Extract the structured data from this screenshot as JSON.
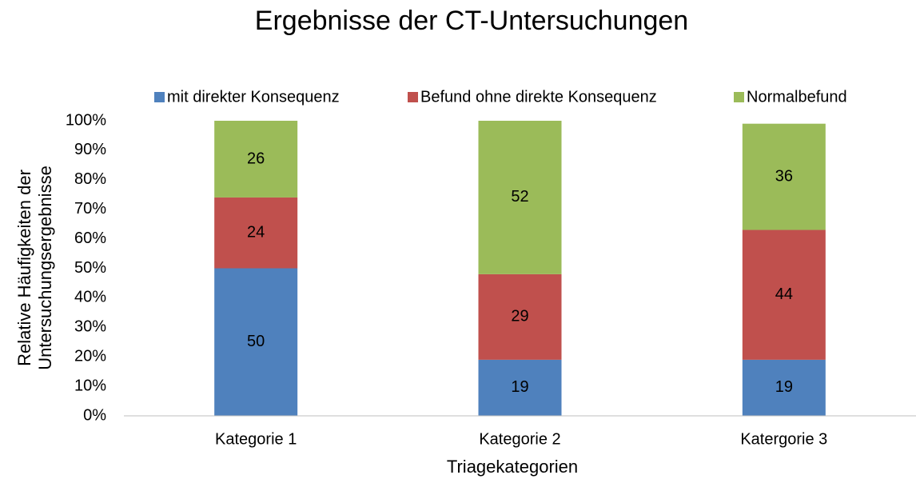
{
  "chart_data": {
    "type": "stacked_bar",
    "title": "Ergebnisse der CT-Untersuchungen",
    "xlabel": "Triagekategorien",
    "ylabel": [
      "Relative Häufigkeiten der",
      "Untersuchungsergebnisse"
    ],
    "categories": [
      "Kategorie 1",
      "Kategorie 2",
      "Katergorie 3"
    ],
    "series": [
      {
        "name": "mit direkter Konsequenz",
        "color": "#4f81bd",
        "values": [
          50,
          19,
          19
        ]
      },
      {
        "name": "Befund ohne direkte Konsequenz",
        "color": "#c0504d",
        "values": [
          24,
          29,
          44
        ]
      },
      {
        "name": "Normalbefund",
        "color": "#9bbb59",
        "values": [
          26,
          52,
          36
        ]
      }
    ],
    "ylim": [
      0,
      100
    ],
    "yticks": [
      {
        "value": 0,
        "label": "0%"
      },
      {
        "value": 10,
        "label": "10%"
      },
      {
        "value": 20,
        "label": "20%"
      },
      {
        "value": 30,
        "label": "30%"
      },
      {
        "value": 40,
        "label": "40%"
      },
      {
        "value": 50,
        "label": "50%"
      },
      {
        "value": 60,
        "label": "60%"
      },
      {
        "value": 70,
        "label": "70%"
      },
      {
        "value": 80,
        "label": "80%"
      },
      {
        "value": 90,
        "label": "90%"
      },
      {
        "value": 100,
        "label": "100%"
      }
    ],
    "grid": false,
    "legend": "top"
  }
}
